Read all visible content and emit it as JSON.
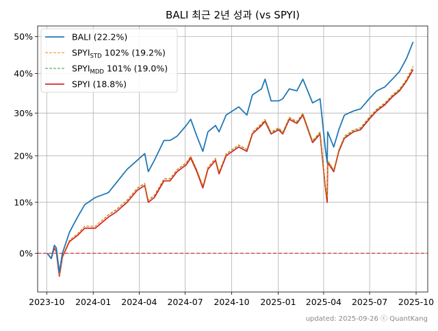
{
  "chart_data": {
    "type": "line",
    "title": "BALI 최근 2년 성과 (vs SPYI)",
    "xlabel": "",
    "ylabel": "",
    "y_scale": "log_return",
    "xlim": [
      "2023-09-13",
      "2025-10-24"
    ],
    "x_ticks": [
      "2023-10",
      "2024-01",
      "2024-04",
      "2024-07",
      "2024-10",
      "2025-01",
      "2025-04",
      "2025-07",
      "2025-10"
    ],
    "y_ticks": [
      "0%",
      "10%",
      "20%",
      "30%",
      "40%",
      "50%"
    ],
    "ylim": [
      -0.07,
      0.53
    ],
    "grid": true,
    "legend_position": "top-left",
    "baseline": {
      "value": 0,
      "color": "#d62728",
      "style": "dashed"
    },
    "series": [
      {
        "name": "BALI (22.2%)",
        "color": "#1f77b4",
        "style": "solid",
        "points": [
          [
            "2023-10-02",
            0.0
          ],
          [
            "2023-10-10",
            -0.01
          ],
          [
            "2023-10-16",
            0.015
          ],
          [
            "2023-10-20",
            0.01
          ],
          [
            "2023-10-26",
            -0.035
          ],
          [
            "2023-11-01",
            0.0
          ],
          [
            "2023-11-15",
            0.04
          ],
          [
            "2023-12-01",
            0.07
          ],
          [
            "2023-12-15",
            0.095
          ],
          [
            "2024-01-05",
            0.11
          ],
          [
            "2024-01-31",
            0.12
          ],
          [
            "2024-02-15",
            0.14
          ],
          [
            "2024-03-08",
            0.17
          ],
          [
            "2024-03-28",
            0.19
          ],
          [
            "2024-04-12",
            0.205
          ],
          [
            "2024-04-19",
            0.165
          ],
          [
            "2024-05-01",
            0.19
          ],
          [
            "2024-05-20",
            0.235
          ],
          [
            "2024-06-01",
            0.235
          ],
          [
            "2024-06-15",
            0.245
          ],
          [
            "2024-07-03",
            0.27
          ],
          [
            "2024-07-12",
            0.285
          ],
          [
            "2024-07-24",
            0.245
          ],
          [
            "2024-08-05",
            0.21
          ],
          [
            "2024-08-15",
            0.255
          ],
          [
            "2024-08-30",
            0.27
          ],
          [
            "2024-09-06",
            0.255
          ],
          [
            "2024-09-20",
            0.295
          ],
          [
            "2024-10-15",
            0.315
          ],
          [
            "2024-10-31",
            0.295
          ],
          [
            "2024-11-11",
            0.345
          ],
          [
            "2024-11-29",
            0.36
          ],
          [
            "2024-12-06",
            0.385
          ],
          [
            "2024-12-18",
            0.33
          ],
          [
            "2025-01-02",
            0.33
          ],
          [
            "2025-01-10",
            0.335
          ],
          [
            "2025-01-23",
            0.36
          ],
          [
            "2025-02-07",
            0.355
          ],
          [
            "2025-02-19",
            0.385
          ],
          [
            "2025-03-10",
            0.325
          ],
          [
            "2025-03-25",
            0.335
          ],
          [
            "2025-04-04",
            0.22
          ],
          [
            "2025-04-08",
            0.185
          ],
          [
            "2025-04-09",
            0.255
          ],
          [
            "2025-04-21",
            0.22
          ],
          [
            "2025-05-01",
            0.26
          ],
          [
            "2025-05-12",
            0.295
          ],
          [
            "2025-05-30",
            0.305
          ],
          [
            "2025-06-13",
            0.31
          ],
          [
            "2025-06-30",
            0.335
          ],
          [
            "2025-07-15",
            0.355
          ],
          [
            "2025-07-31",
            0.365
          ],
          [
            "2025-08-15",
            0.385
          ],
          [
            "2025-08-29",
            0.405
          ],
          [
            "2025-09-12",
            0.44
          ],
          [
            "2025-09-25",
            0.485
          ]
        ]
      },
      {
        "name": "SPYI_STD 102% (19.2%)",
        "legend_base": "SPYI",
        "legend_sub": "STD",
        "legend_rest": " 102% (19.2%)",
        "color": "#ff7f0e",
        "style": "dashed",
        "points": [
          [
            "2023-10-02",
            0.0
          ],
          [
            "2023-10-10",
            -0.01
          ],
          [
            "2023-10-16",
            0.012
          ],
          [
            "2023-10-20",
            0.005
          ],
          [
            "2023-10-26",
            -0.04
          ],
          [
            "2023-11-01",
            -0.005
          ],
          [
            "2023-11-15",
            0.025
          ],
          [
            "2023-12-01",
            0.037
          ],
          [
            "2023-12-15",
            0.052
          ],
          [
            "2024-01-05",
            0.052
          ],
          [
            "2024-01-31",
            0.075
          ],
          [
            "2024-02-15",
            0.085
          ],
          [
            "2024-03-08",
            0.105
          ],
          [
            "2024-03-28",
            0.13
          ],
          [
            "2024-04-12",
            0.14
          ],
          [
            "2024-04-19",
            0.105
          ],
          [
            "2024-05-01",
            0.115
          ],
          [
            "2024-05-20",
            0.15
          ],
          [
            "2024-06-01",
            0.15
          ],
          [
            "2024-06-15",
            0.17
          ],
          [
            "2024-07-03",
            0.185
          ],
          [
            "2024-07-12",
            0.2
          ],
          [
            "2024-07-24",
            0.17
          ],
          [
            "2024-08-05",
            0.135
          ],
          [
            "2024-08-15",
            0.175
          ],
          [
            "2024-08-30",
            0.195
          ],
          [
            "2024-09-06",
            0.165
          ],
          [
            "2024-09-20",
            0.205
          ],
          [
            "2024-10-15",
            0.225
          ],
          [
            "2024-10-31",
            0.215
          ],
          [
            "2024-11-11",
            0.255
          ],
          [
            "2024-11-29",
            0.275
          ],
          [
            "2024-12-06",
            0.285
          ],
          [
            "2024-12-18",
            0.255
          ],
          [
            "2025-01-02",
            0.265
          ],
          [
            "2025-01-10",
            0.255
          ],
          [
            "2025-01-23",
            0.29
          ],
          [
            "2025-02-07",
            0.28
          ],
          [
            "2025-02-19",
            0.3
          ],
          [
            "2025-03-10",
            0.235
          ],
          [
            "2025-03-25",
            0.255
          ],
          [
            "2025-04-04",
            0.14
          ],
          [
            "2025-04-08",
            0.11
          ],
          [
            "2025-04-09",
            0.19
          ],
          [
            "2025-04-21",
            0.17
          ],
          [
            "2025-05-01",
            0.215
          ],
          [
            "2025-05-12",
            0.245
          ],
          [
            "2025-05-30",
            0.26
          ],
          [
            "2025-06-13",
            0.265
          ],
          [
            "2025-06-30",
            0.29
          ],
          [
            "2025-07-15",
            0.31
          ],
          [
            "2025-07-31",
            0.325
          ],
          [
            "2025-08-15",
            0.345
          ],
          [
            "2025-08-29",
            0.36
          ],
          [
            "2025-09-12",
            0.385
          ],
          [
            "2025-09-25",
            0.42
          ]
        ]
      },
      {
        "name": "SPYI_MDD 101% (19.0%)",
        "legend_base": "SPYI",
        "legend_sub": "MDD",
        "legend_rest": " 101% (19.0%)",
        "color": "#2ca02c",
        "style": "dashed",
        "points": [
          [
            "2023-10-02",
            0.0
          ],
          [
            "2023-10-10",
            -0.01
          ],
          [
            "2023-10-16",
            0.012
          ],
          [
            "2023-10-20",
            0.005
          ],
          [
            "2023-10-26",
            -0.04
          ],
          [
            "2023-11-01",
            -0.005
          ],
          [
            "2023-11-15",
            0.025
          ],
          [
            "2023-12-01",
            0.037
          ],
          [
            "2023-12-15",
            0.052
          ],
          [
            "2024-01-05",
            0.052
          ],
          [
            "2024-01-31",
            0.074
          ],
          [
            "2024-02-15",
            0.084
          ],
          [
            "2024-03-08",
            0.104
          ],
          [
            "2024-03-28",
            0.129
          ],
          [
            "2024-04-12",
            0.139
          ],
          [
            "2024-04-19",
            0.104
          ],
          [
            "2024-05-01",
            0.114
          ],
          [
            "2024-05-20",
            0.149
          ],
          [
            "2024-06-01",
            0.149
          ],
          [
            "2024-06-15",
            0.169
          ],
          [
            "2024-07-03",
            0.184
          ],
          [
            "2024-07-12",
            0.199
          ],
          [
            "2024-07-24",
            0.169
          ],
          [
            "2024-08-05",
            0.134
          ],
          [
            "2024-08-15",
            0.174
          ],
          [
            "2024-08-30",
            0.194
          ],
          [
            "2024-09-06",
            0.164
          ],
          [
            "2024-09-20",
            0.204
          ],
          [
            "2024-10-15",
            0.224
          ],
          [
            "2024-10-31",
            0.214
          ],
          [
            "2024-11-11",
            0.254
          ],
          [
            "2024-11-29",
            0.273
          ],
          [
            "2024-12-06",
            0.283
          ],
          [
            "2024-12-18",
            0.253
          ],
          [
            "2025-01-02",
            0.263
          ],
          [
            "2025-01-10",
            0.253
          ],
          [
            "2025-01-23",
            0.288
          ],
          [
            "2025-02-07",
            0.278
          ],
          [
            "2025-02-19",
            0.298
          ],
          [
            "2025-03-10",
            0.233
          ],
          [
            "2025-03-25",
            0.253
          ],
          [
            "2025-04-04",
            0.139
          ],
          [
            "2025-04-08",
            0.109
          ],
          [
            "2025-04-09",
            0.188
          ],
          [
            "2025-04-21",
            0.168
          ],
          [
            "2025-05-01",
            0.213
          ],
          [
            "2025-05-12",
            0.243
          ],
          [
            "2025-05-30",
            0.258
          ],
          [
            "2025-06-13",
            0.263
          ],
          [
            "2025-06-30",
            0.288
          ],
          [
            "2025-07-15",
            0.308
          ],
          [
            "2025-07-31",
            0.323
          ],
          [
            "2025-08-15",
            0.343
          ],
          [
            "2025-08-29",
            0.358
          ],
          [
            "2025-09-12",
            0.383
          ],
          [
            "2025-09-25",
            0.417
          ]
        ]
      },
      {
        "name": "SPYI (18.8%)",
        "color": "#d62728",
        "style": "solid",
        "points": [
          [
            "2023-10-02",
            0.0
          ],
          [
            "2023-10-10",
            -0.01
          ],
          [
            "2023-10-16",
            0.01
          ],
          [
            "2023-10-20",
            0.003
          ],
          [
            "2023-10-26",
            -0.042
          ],
          [
            "2023-11-01",
            -0.007
          ],
          [
            "2023-11-15",
            0.022
          ],
          [
            "2023-12-01",
            0.034
          ],
          [
            "2023-12-15",
            0.048
          ],
          [
            "2024-01-05",
            0.048
          ],
          [
            "2024-01-31",
            0.07
          ],
          [
            "2024-02-15",
            0.08
          ],
          [
            "2024-03-08",
            0.1
          ],
          [
            "2024-03-28",
            0.125
          ],
          [
            "2024-04-12",
            0.135
          ],
          [
            "2024-04-19",
            0.1
          ],
          [
            "2024-05-01",
            0.11
          ],
          [
            "2024-05-20",
            0.145
          ],
          [
            "2024-06-01",
            0.145
          ],
          [
            "2024-06-15",
            0.165
          ],
          [
            "2024-07-03",
            0.18
          ],
          [
            "2024-07-12",
            0.195
          ],
          [
            "2024-07-24",
            0.165
          ],
          [
            "2024-08-05",
            0.13
          ],
          [
            "2024-08-15",
            0.17
          ],
          [
            "2024-08-30",
            0.19
          ],
          [
            "2024-09-06",
            0.16
          ],
          [
            "2024-09-20",
            0.2
          ],
          [
            "2024-10-15",
            0.22
          ],
          [
            "2024-10-31",
            0.21
          ],
          [
            "2024-11-11",
            0.25
          ],
          [
            "2024-11-29",
            0.27
          ],
          [
            "2024-12-06",
            0.28
          ],
          [
            "2024-12-18",
            0.25
          ],
          [
            "2025-01-02",
            0.26
          ],
          [
            "2025-01-10",
            0.25
          ],
          [
            "2025-01-23",
            0.285
          ],
          [
            "2025-02-07",
            0.275
          ],
          [
            "2025-02-19",
            0.295
          ],
          [
            "2025-03-10",
            0.23
          ],
          [
            "2025-03-25",
            0.25
          ],
          [
            "2025-04-04",
            0.135
          ],
          [
            "2025-04-08",
            0.1
          ],
          [
            "2025-04-09",
            0.185
          ],
          [
            "2025-04-21",
            0.165
          ],
          [
            "2025-05-01",
            0.21
          ],
          [
            "2025-05-12",
            0.24
          ],
          [
            "2025-05-30",
            0.255
          ],
          [
            "2025-06-13",
            0.26
          ],
          [
            "2025-06-30",
            0.285
          ],
          [
            "2025-07-15",
            0.305
          ],
          [
            "2025-07-31",
            0.32
          ],
          [
            "2025-08-15",
            0.34
          ],
          [
            "2025-08-29",
            0.355
          ],
          [
            "2025-09-12",
            0.38
          ],
          [
            "2025-09-25",
            0.41
          ]
        ]
      }
    ]
  },
  "footer": "updated: 2025-09-26 ⓒ QuantKang"
}
